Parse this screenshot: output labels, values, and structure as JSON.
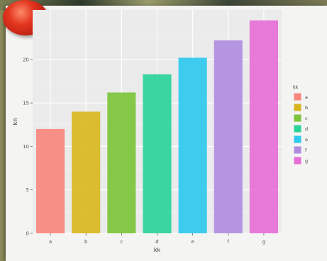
{
  "chart_data": {
    "type": "bar",
    "categories": [
      "a",
      "b",
      "c",
      "d",
      "e",
      "f",
      "g"
    ],
    "values": [
      12,
      14,
      16.2,
      18.3,
      20.2,
      22.2,
      24.5
    ],
    "colors": [
      "#f8877d",
      "#d9b61f",
      "#7cc43a",
      "#2bd39b",
      "#2ec9ee",
      "#b08ce0",
      "#e66fd6"
    ],
    "xlabel": "kk",
    "ylabel": "kn",
    "yticks": [
      0,
      5,
      10,
      15,
      20
    ],
    "ylim": [
      0,
      25.7
    ],
    "grid": true,
    "legend": {
      "title": "kk",
      "position": "right",
      "entries": [
        "a",
        "b",
        "c",
        "d",
        "e",
        "f",
        "g"
      ]
    }
  }
}
